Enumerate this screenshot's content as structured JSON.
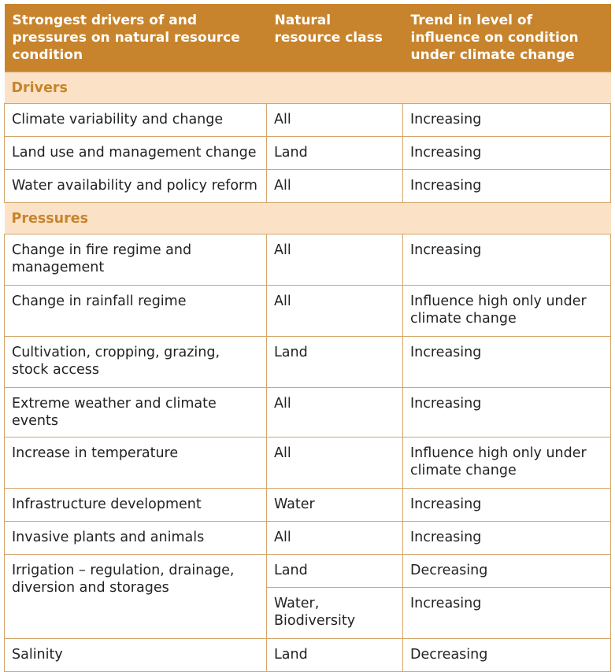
{
  "header": {
    "col1": "Strongest drivers of and pressures on natural resource condition",
    "col2": "Natural resource class",
    "col3": "Trend in level of influence on condition under climate change"
  },
  "drivers": {
    "section_label": "Drivers",
    "rows": [
      {
        "name": "Climate variability and change",
        "class": "All",
        "trend": "Increasing"
      },
      {
        "name": "Land use and management change",
        "class": "Land",
        "trend": "Increasing"
      },
      {
        "name": "Water availability and policy reform",
        "class": "All",
        "trend": "Increasing"
      }
    ]
  },
  "pressures": {
    "section_label": "Pressures",
    "rows": [
      {
        "name": "Change in fire regime and management",
        "class": "All",
        "trend": "Increasing"
      },
      {
        "name": "Change in rainfall regime",
        "class": "All",
        "trend": "Influence high only under climate change"
      },
      {
        "name": "Cultivation, cropping, grazing, stock access",
        "class": "Land",
        "trend": "Increasing"
      },
      {
        "name": "Extreme weather and climate events",
        "class": "All",
        "trend": "Increasing"
      },
      {
        "name": "Increase in temperature",
        "class": "All",
        "trend": "Influence high only under climate change"
      },
      {
        "name": "Infrastructure development",
        "class": "Water",
        "trend": "Increasing"
      },
      {
        "name": "Invasive plants and animals",
        "class": "All",
        "trend": "Increasing"
      },
      {
        "name": "Irrigation – regulation, drainage, diversion and storages",
        "class_a": "Land",
        "trend_a": "Decreasing",
        "class_b": "Water, Biodiversity",
        "trend_b": "Increasing"
      },
      {
        "name": "Salinity",
        "class": "Land",
        "trend": "Decreasing"
      }
    ]
  }
}
